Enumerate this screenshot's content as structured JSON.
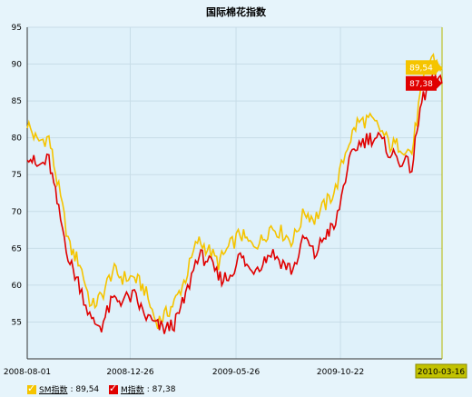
{
  "chart_data": {
    "type": "line",
    "title": "国际棉花指数",
    "x_dates": [
      "2008-08-01",
      "2008-08-15",
      "2008-09-01",
      "2008-09-15",
      "2008-10-01",
      "2008-10-15",
      "2008-11-01",
      "2008-11-15",
      "2008-12-01",
      "2008-12-15",
      "2009-01-01",
      "2009-01-15",
      "2009-02-01",
      "2009-02-15",
      "2009-03-01",
      "2009-03-15",
      "2009-04-01",
      "2009-04-15",
      "2009-05-01",
      "2009-05-15",
      "2009-06-01",
      "2009-06-15",
      "2009-07-01",
      "2009-07-15",
      "2009-08-01",
      "2009-08-15",
      "2009-09-01",
      "2009-09-15",
      "2009-10-01",
      "2009-10-15",
      "2009-11-01",
      "2009-11-15",
      "2009-12-01",
      "2009-12-15",
      "2010-01-01",
      "2010-01-15",
      "2010-02-01",
      "2010-02-15",
      "2010-03-01",
      "2010-03-16"
    ],
    "x_tick_labels": [
      "2008-08-01",
      "2008-12-26",
      "2009-05-26",
      "2009-10-22",
      "2010-03-16"
    ],
    "x_tick_dates": [
      "2008-08-01",
      "2008-12-26",
      "2009-05-26",
      "2009-10-22",
      "2010-03-16"
    ],
    "y_ticks": [
      55,
      60,
      65,
      70,
      75,
      80,
      85,
      90,
      95
    ],
    "ylim": [
      50,
      95
    ],
    "grid": true,
    "series": [
      {
        "name": "SM指数",
        "color": "#f5c400",
        "values": [
          82,
          79.5,
          80,
          73,
          65,
          63,
          57,
          58.5,
          62,
          61,
          61,
          59.5,
          55,
          56,
          58,
          61,
          66,
          65,
          63,
          65,
          67,
          65.5,
          66,
          68,
          67,
          66,
          70,
          69,
          71,
          73,
          79,
          82,
          82.5,
          81.5,
          79,
          79,
          78,
          87,
          91,
          89.54
        ],
        "last_value": "89,54"
      },
      {
        "name": "M指数",
        "color": "#e00000",
        "values": [
          78,
          76,
          77,
          70,
          63,
          60,
          55,
          54.5,
          58,
          58,
          58.5,
          56,
          54.5,
          54,
          55,
          58.5,
          64,
          63.5,
          61,
          61,
          64,
          62,
          63,
          64.5,
          63,
          62,
          66.5,
          64,
          67,
          68,
          76,
          79,
          80,
          80,
          78,
          77,
          76,
          85,
          88,
          87.38
        ],
        "last_value": "87,38"
      }
    ],
    "legend": [
      {
        "name": "SM指数",
        "value_text": ": 89,54"
      },
      {
        "name": "M指数",
        "value_text": ": 87,38"
      }
    ],
    "legend_position": "bottom-left"
  }
}
